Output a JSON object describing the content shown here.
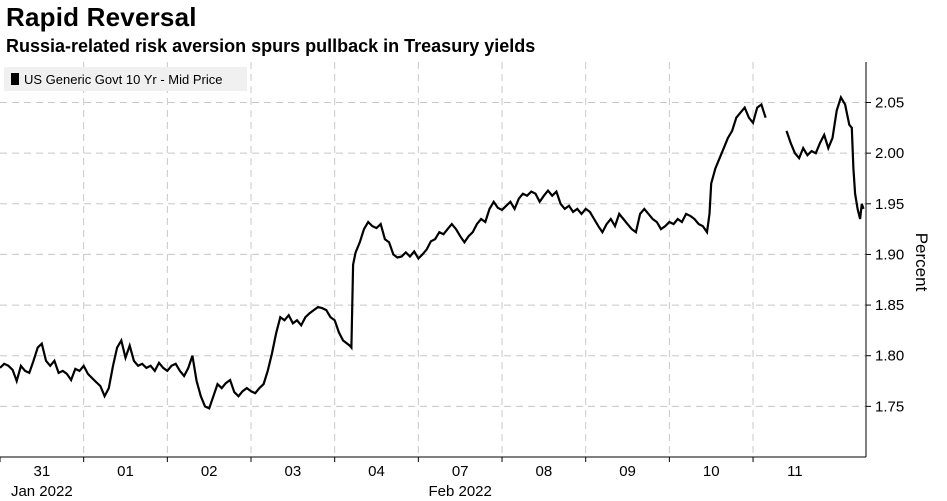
{
  "chart_data": {
    "type": "line",
    "title": "Rapid Reversal",
    "subtitle": "Russia-related risk aversion spurs pullback in Treasury yields",
    "ylabel": "Percent",
    "xlabel": "",
    "ylim": [
      1.7,
      2.09
    ],
    "yticks": [
      "2.05",
      "2.00",
      "1.95",
      "1.90",
      "1.85",
      "1.80",
      "1.75"
    ],
    "x_categories": [
      "31",
      "01",
      "02",
      "03",
      "04",
      "07",
      "08",
      "09",
      "10",
      "11"
    ],
    "x_period_labels": [
      {
        "label": "Jan 2022",
        "under": "31"
      },
      {
        "label": "Feb 2022",
        "under": "07"
      }
    ],
    "legend_position": "top-left",
    "series": [
      {
        "name": "US Generic Govt 10 Yr - Mid Price",
        "color": "#000000",
        "segments": [
          [
            [
              0.0,
              1.788
            ],
            [
              0.05,
              1.792
            ],
            [
              0.1,
              1.79
            ],
            [
              0.15,
              1.786
            ],
            [
              0.2,
              1.775
            ],
            [
              0.25,
              1.79
            ],
            [
              0.3,
              1.785
            ],
            [
              0.35,
              1.783
            ],
            [
              0.4,
              1.795
            ],
            [
              0.45,
              1.808
            ],
            [
              0.5,
              1.812
            ],
            [
              0.55,
              1.795
            ],
            [
              0.6,
              1.79
            ],
            [
              0.65,
              1.795
            ],
            [
              0.7,
              1.783
            ],
            [
              0.75,
              1.785
            ],
            [
              0.8,
              1.782
            ],
            [
              0.85,
              1.776
            ],
            [
              0.9,
              1.787
            ],
            [
              0.95,
              1.785
            ],
            [
              1.0,
              1.79
            ],
            [
              1.05,
              1.782
            ],
            [
              1.1,
              1.778
            ],
            [
              1.15,
              1.774
            ],
            [
              1.2,
              1.77
            ],
            [
              1.25,
              1.76
            ],
            [
              1.3,
              1.768
            ],
            [
              1.35,
              1.79
            ],
            [
              1.4,
              1.808
            ],
            [
              1.45,
              1.815
            ],
            [
              1.5,
              1.798
            ],
            [
              1.55,
              1.81
            ],
            [
              1.6,
              1.795
            ],
            [
              1.65,
              1.79
            ],
            [
              1.7,
              1.792
            ],
            [
              1.75,
              1.788
            ],
            [
              1.8,
              1.79
            ],
            [
              1.85,
              1.785
            ],
            [
              1.9,
              1.793
            ],
            [
              1.95,
              1.788
            ],
            [
              2.0,
              1.785
            ],
            [
              2.05,
              1.79
            ],
            [
              2.1,
              1.792
            ],
            [
              2.15,
              1.785
            ],
            [
              2.2,
              1.78
            ],
            [
              2.25,
              1.788
            ],
            [
              2.3,
              1.8
            ],
            [
              2.35,
              1.775
            ],
            [
              2.4,
              1.76
            ],
            [
              2.45,
              1.75
            ],
            [
              2.5,
              1.748
            ],
            [
              2.55,
              1.76
            ],
            [
              2.6,
              1.772
            ],
            [
              2.65,
              1.768
            ],
            [
              2.7,
              1.773
            ],
            [
              2.75,
              1.776
            ],
            [
              2.8,
              1.764
            ],
            [
              2.85,
              1.76
            ],
            [
              2.9,
              1.765
            ],
            [
              2.95,
              1.768
            ],
            [
              3.0,
              1.765
            ],
            [
              3.05,
              1.763
            ],
            [
              3.1,
              1.768
            ],
            [
              3.15,
              1.772
            ],
            [
              3.2,
              1.785
            ],
            [
              3.25,
              1.802
            ],
            [
              3.3,
              1.822
            ],
            [
              3.35,
              1.838
            ],
            [
              3.4,
              1.835
            ],
            [
              3.45,
              1.84
            ],
            [
              3.5,
              1.832
            ],
            [
              3.55,
              1.835
            ],
            [
              3.6,
              1.83
            ],
            [
              3.65,
              1.838
            ],
            [
              3.7,
              1.842
            ],
            [
              3.75,
              1.845
            ],
            [
              3.8,
              1.848
            ],
            [
              3.85,
              1.847
            ],
            [
              3.9,
              1.845
            ],
            [
              3.95,
              1.838
            ],
            [
              4.0,
              1.835
            ],
            [
              4.05,
              1.823
            ],
            [
              4.1,
              1.815
            ],
            [
              4.15,
              1.812
            ],
            [
              4.18,
              1.81
            ],
            [
              4.2,
              1.808
            ],
            [
              4.22,
              1.89
            ],
            [
              4.25,
              1.902
            ],
            [
              4.3,
              1.912
            ],
            [
              4.35,
              1.925
            ],
            [
              4.4,
              1.932
            ],
            [
              4.45,
              1.928
            ],
            [
              4.5,
              1.926
            ],
            [
              4.55,
              1.93
            ],
            [
              4.6,
              1.915
            ],
            [
              4.65,
              1.912
            ],
            [
              4.7,
              1.9
            ],
            [
              4.75,
              1.897
            ],
            [
              4.8,
              1.898
            ],
            [
              4.85,
              1.902
            ],
            [
              4.9,
              1.898
            ],
            [
              4.95,
              1.903
            ],
            [
              5.0,
              1.896
            ],
            [
              5.05,
              1.9
            ],
            [
              5.1,
              1.905
            ],
            [
              5.15,
              1.913
            ],
            [
              5.2,
              1.915
            ],
            [
              5.25,
              1.922
            ],
            [
              5.3,
              1.92
            ],
            [
              5.35,
              1.925
            ],
            [
              5.4,
              1.93
            ],
            [
              5.45,
              1.925
            ],
            [
              5.5,
              1.918
            ],
            [
              5.55,
              1.912
            ],
            [
              5.6,
              1.918
            ],
            [
              5.65,
              1.922
            ],
            [
              5.7,
              1.93
            ],
            [
              5.75,
              1.935
            ],
            [
              5.8,
              1.932
            ],
            [
              5.85,
              1.945
            ],
            [
              5.9,
              1.952
            ],
            [
              5.95,
              1.946
            ],
            [
              6.0,
              1.944
            ],
            [
              6.05,
              1.948
            ],
            [
              6.1,
              1.952
            ],
            [
              6.15,
              1.945
            ],
            [
              6.2,
              1.955
            ],
            [
              6.25,
              1.96
            ],
            [
              6.3,
              1.958
            ],
            [
              6.35,
              1.962
            ],
            [
              6.4,
              1.96
            ],
            [
              6.45,
              1.952
            ],
            [
              6.5,
              1.958
            ],
            [
              6.55,
              1.963
            ],
            [
              6.6,
              1.958
            ],
            [
              6.65,
              1.962
            ],
            [
              6.7,
              1.95
            ],
            [
              6.75,
              1.945
            ],
            [
              6.8,
              1.948
            ],
            [
              6.85,
              1.942
            ],
            [
              6.9,
              1.945
            ],
            [
              6.95,
              1.94
            ],
            [
              7.0,
              1.945
            ],
            [
              7.05,
              1.942
            ],
            [
              7.1,
              1.935
            ],
            [
              7.15,
              1.928
            ],
            [
              7.2,
              1.922
            ],
            [
              7.25,
              1.93
            ],
            [
              7.3,
              1.935
            ],
            [
              7.35,
              1.928
            ],
            [
              7.4,
              1.94
            ],
            [
              7.45,
              1.935
            ],
            [
              7.5,
              1.93
            ],
            [
              7.55,
              1.925
            ],
            [
              7.6,
              1.922
            ],
            [
              7.65,
              1.94
            ],
            [
              7.7,
              1.945
            ],
            [
              7.75,
              1.94
            ],
            [
              7.8,
              1.935
            ],
            [
              7.85,
              1.932
            ],
            [
              7.9,
              1.925
            ],
            [
              7.95,
              1.928
            ],
            [
              8.0,
              1.932
            ],
            [
              8.05,
              1.93
            ],
            [
              8.1,
              1.935
            ],
            [
              8.15,
              1.932
            ],
            [
              8.2,
              1.94
            ],
            [
              8.25,
              1.938
            ],
            [
              8.3,
              1.935
            ],
            [
              8.35,
              1.93
            ],
            [
              8.4,
              1.928
            ],
            [
              8.45,
              1.922
            ],
            [
              8.48,
              1.94
            ],
            [
              8.5,
              1.97
            ],
            [
              8.55,
              1.985
            ],
            [
              8.6,
              1.995
            ],
            [
              8.65,
              2.005
            ],
            [
              8.7,
              2.015
            ],
            [
              8.75,
              2.022
            ],
            [
              8.8,
              2.035
            ],
            [
              8.85,
              2.04
            ],
            [
              8.9,
              2.045
            ],
            [
              8.95,
              2.035
            ],
            [
              9.0,
              2.03
            ],
            [
              9.05,
              2.045
            ],
            [
              9.1,
              2.048
            ],
            [
              9.15,
              2.035
            ]
          ],
          [
            [
              9.4,
              2.022
            ],
            [
              9.45,
              2.01
            ],
            [
              9.5,
              2.0
            ],
            [
              9.55,
              1.995
            ],
            [
              9.6,
              2.005
            ],
            [
              9.65,
              1.998
            ],
            [
              9.7,
              2.002
            ],
            [
              9.75,
              2.0
            ],
            [
              9.8,
              2.01
            ],
            [
              9.85,
              2.018
            ],
            [
              9.9,
              2.005
            ],
            [
              9.95,
              2.015
            ],
            [
              10.0,
              2.042
            ],
            [
              10.05,
              2.055
            ],
            [
              10.1,
              2.048
            ],
            [
              10.15,
              2.028
            ],
            [
              10.18,
              2.025
            ],
            [
              10.2,
              1.985
            ],
            [
              10.22,
              1.96
            ],
            [
              10.25,
              1.945
            ],
            [
              10.28,
              1.935
            ],
            [
              10.3,
              1.95
            ],
            [
              10.32,
              1.945
            ]
          ]
        ]
      }
    ]
  }
}
